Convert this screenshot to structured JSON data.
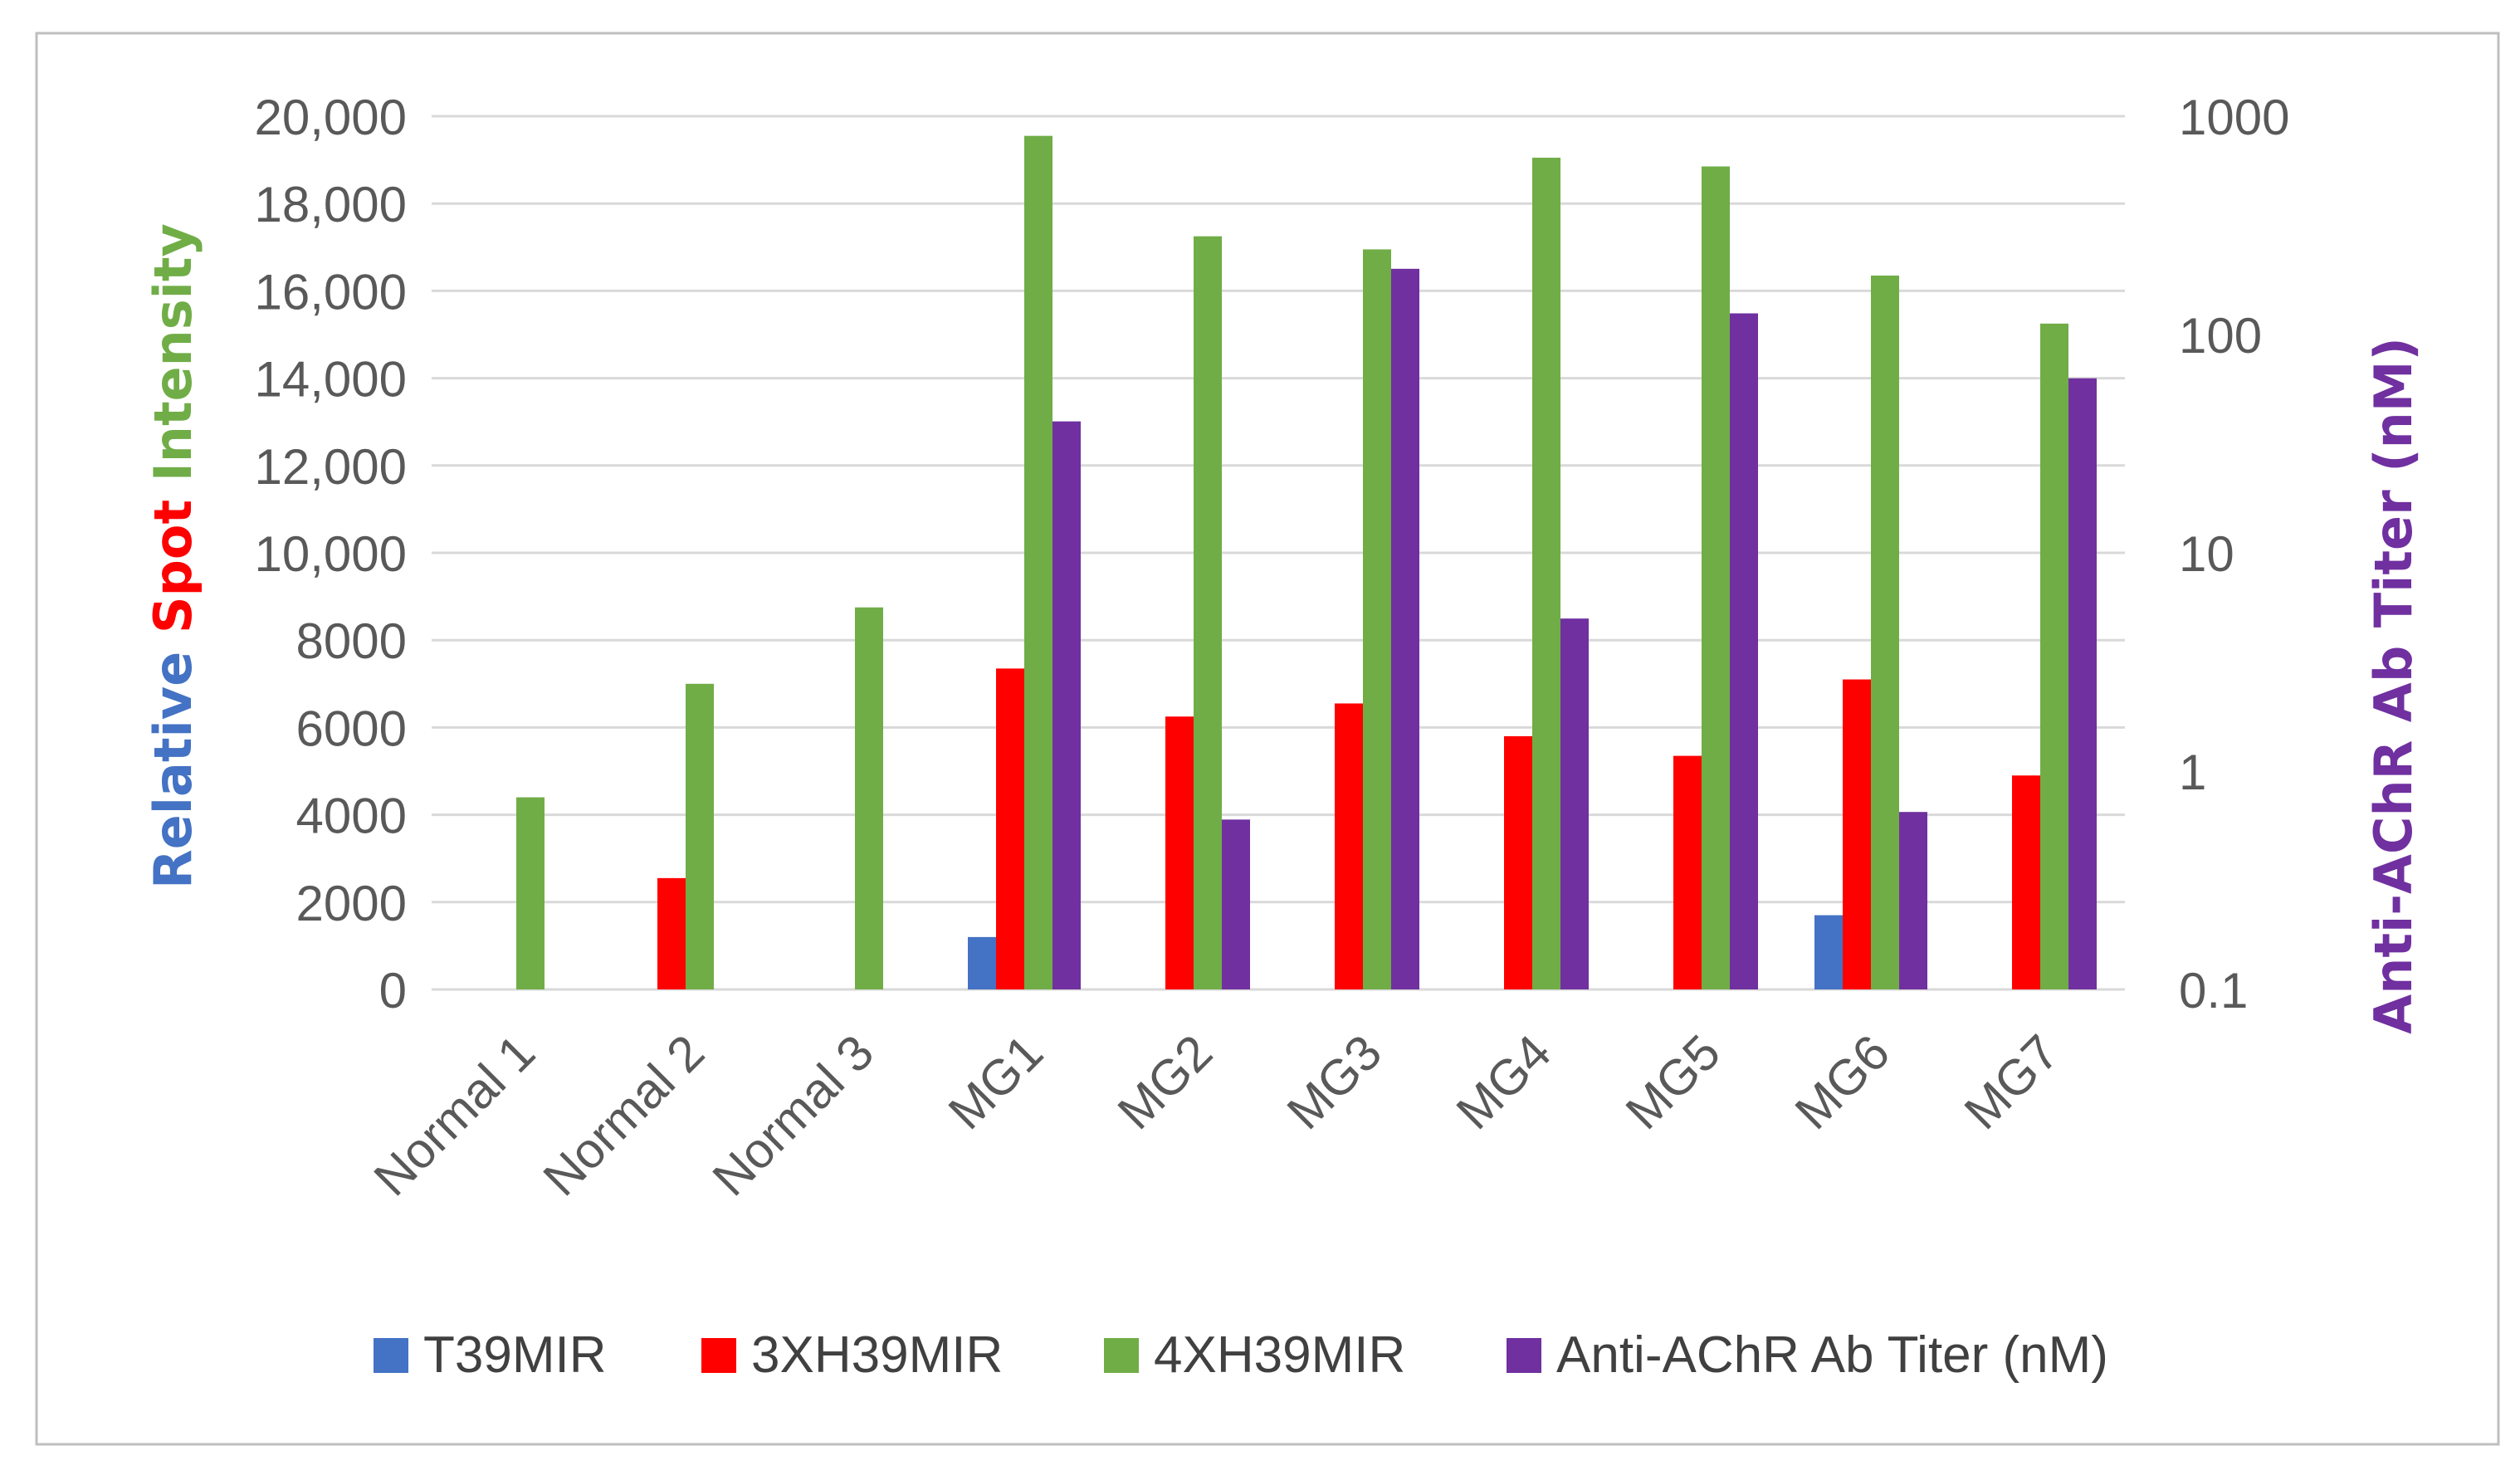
{
  "chart_data": {
    "type": "bar",
    "categories": [
      "Normal 1",
      "Normal 2",
      "Normal 3",
      "MG1",
      "MG2",
      "MG3",
      "MG4",
      "MG5",
      "MG6",
      "MG7"
    ],
    "series": [
      {
        "name": "T39MIR",
        "axis": "left",
        "color": "#4472C4",
        "values": [
          0,
          0,
          0,
          1200,
          0,
          0,
          0,
          0,
          1700,
          0
        ]
      },
      {
        "name": "3XH39MIR",
        "axis": "left",
        "color": "#FF0000",
        "values": [
          0,
          2550,
          0,
          7350,
          6250,
          6550,
          5800,
          5350,
          7100,
          4900
        ]
      },
      {
        "name": "4XH39MIR",
        "axis": "left",
        "color": "#70AD47",
        "values": [
          4400,
          7000,
          8750,
          19550,
          17250,
          16950,
          19050,
          18850,
          16350,
          15250
        ]
      },
      {
        "name": "Anti-AChR Ab Titer (nM)",
        "axis": "right",
        "color": "#7030A0",
        "values": [
          null,
          null,
          null,
          40,
          0.6,
          200,
          5,
          125,
          0.65,
          63
        ]
      }
    ],
    "left_axis": {
      "title_parts": [
        {
          "text": "Relative",
          "color": "#4472C4"
        },
        {
          "text": "Spot",
          "color": "#FF0000"
        },
        {
          "text": "Intensity",
          "color": "#70AD47"
        }
      ],
      "ylim": [
        0,
        20000
      ],
      "ticks": [
        0,
        2000,
        4000,
        6000,
        8000,
        10000,
        12000,
        14000,
        16000,
        18000,
        20000
      ],
      "tick_labels": [
        "0",
        "2000",
        "4000",
        "6000",
        "8000",
        "10,000",
        "12,000",
        "14,000",
        "16,000",
        "18,000",
        "20,000"
      ]
    },
    "right_axis": {
      "title": "Anti-AChR Ab Titer (nM)",
      "title_color": "#7030A0",
      "scale": "log",
      "ylim": [
        0.1,
        1000
      ],
      "ticks": [
        0.1,
        1,
        10,
        100,
        1000
      ],
      "tick_labels": [
        "0.1",
        "1",
        "10",
        "100",
        "1000"
      ]
    },
    "grid": true,
    "legend_position": "bottom"
  }
}
